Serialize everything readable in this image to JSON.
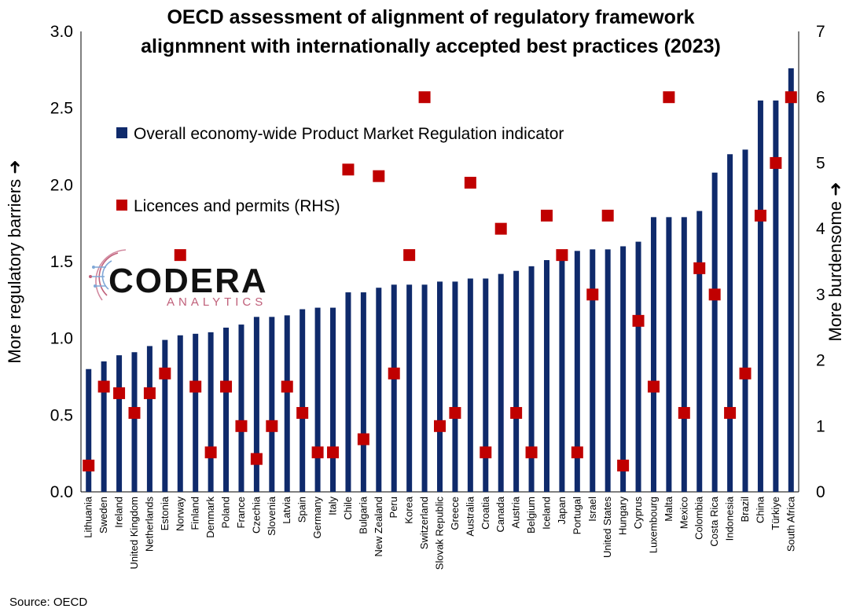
{
  "title_line1": "OECD assessment of alignment of regulatory framework",
  "title_line2": "alignmnent with internationally accepted best practices (2023)",
  "source": "Source: OECD",
  "logo": {
    "name": "CODERA",
    "sub": "ANALYTICS"
  },
  "chart_data": {
    "type": "bar",
    "categories": [
      "Lithuania",
      "Sweden",
      "Ireland",
      "United Kingdom",
      "Netherlands",
      "Estonia",
      "Norway",
      "Finland",
      "Denmark",
      "Poland",
      "France",
      "Czechia",
      "Slovenia",
      "Latvia",
      "Spain",
      "Germany",
      "Italy",
      "Chile",
      "Bulgaria",
      "New Zealand",
      "Peru",
      "Korea",
      "Switzerland",
      "Slovak Republic",
      "Greece",
      "Australia",
      "Croatia",
      "Canada",
      "Austria",
      "Belgium",
      "Iceland",
      "Japan",
      "Portugal",
      "Israel",
      "United States",
      "Hungary",
      "Cyprus",
      "Luxembourg",
      "Malta",
      "Mexico",
      "Colombia",
      "Costa Rica",
      "Indonesia",
      "Brazil",
      "China",
      "Türkiye",
      "South Africa"
    ],
    "series": [
      {
        "name": "Overall economy-wide Product Market Regulation indicator",
        "type": "bar",
        "axis": "left",
        "color": "#0f2a6b",
        "values": [
          0.8,
          0.85,
          0.89,
          0.91,
          0.95,
          0.99,
          1.02,
          1.03,
          1.04,
          1.07,
          1.09,
          1.14,
          1.14,
          1.15,
          1.19,
          1.2,
          1.2,
          1.3,
          1.3,
          1.33,
          1.35,
          1.35,
          1.35,
          1.37,
          1.37,
          1.39,
          1.39,
          1.42,
          1.44,
          1.47,
          1.51,
          1.54,
          1.57,
          1.58,
          1.58,
          1.6,
          1.63,
          1.79,
          1.79,
          1.79,
          1.83,
          2.08,
          2.2,
          2.23,
          2.55,
          2.55,
          2.76
        ]
      },
      {
        "name": "Licences and permits (RHS)",
        "type": "scatter",
        "axis": "right",
        "color": "#c00000",
        "values": [
          0.4,
          1.6,
          1.5,
          1.2,
          1.5,
          1.8,
          3.6,
          1.6,
          0.6,
          1.6,
          1.0,
          0.5,
          1.0,
          1.6,
          1.2,
          0.6,
          0.6,
          4.9,
          0.8,
          4.8,
          1.8,
          3.6,
          6.0,
          1.0,
          1.2,
          4.7,
          0.6,
          4.0,
          1.2,
          0.6,
          4.2,
          3.6,
          0.6,
          3.0,
          4.2,
          0.4,
          2.6,
          1.6,
          6.0,
          1.2,
          3.4,
          3.0,
          1.2,
          1.8,
          4.2,
          5.0,
          6.0
        ]
      }
    ],
    "ylabel": "More regulatory barriers ➜",
    "y2label": "More burdensome ➜",
    "ylim": [
      0,
      3.0
    ],
    "y2lim": [
      0,
      7
    ],
    "yticks": [
      "0.0",
      "0.5",
      "1.0",
      "1.5",
      "2.0",
      "2.5",
      "3.0"
    ],
    "y2ticks": [
      "0",
      "1",
      "2",
      "3",
      "4",
      "5",
      "6",
      "7"
    ],
    "grid": false,
    "legend_position": "upper-left"
  }
}
